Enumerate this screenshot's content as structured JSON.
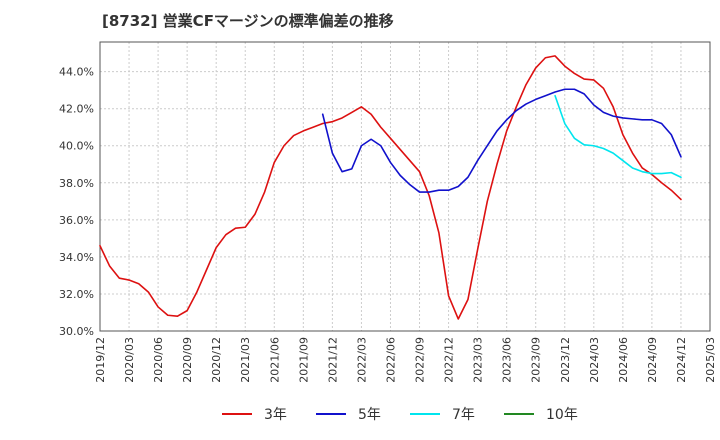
{
  "chart_data": {
    "type": "line",
    "title": "[8732]  営業CFマージンの標準偏差の推移",
    "x_tick_labels": [
      "2019/12",
      "2020/03",
      "2020/06",
      "2020/09",
      "2020/12",
      "2021/03",
      "2021/06",
      "2021/09",
      "2021/12",
      "2022/03",
      "2022/06",
      "2022/09",
      "2022/12",
      "2023/03",
      "2023/06",
      "2023/09",
      "2023/12",
      "2024/03",
      "2024/06",
      "2024/09",
      "2024/12",
      "2025/03"
    ],
    "y_tick_labels": [
      "30.0%",
      "32.0%",
      "34.0%",
      "36.0%",
      "38.0%",
      "40.0%",
      "42.0%",
      "44.0%"
    ],
    "ylim": [
      30,
      45.6
    ],
    "grid": true,
    "legend_position": "bottom",
    "series": [
      {
        "name": "3年",
        "color": "#dd1111",
        "x": [
          "2019/12",
          "2020/01",
          "2020/02",
          "2020/03",
          "2020/04",
          "2020/05",
          "2020/06",
          "2020/07",
          "2020/08",
          "2020/09",
          "2020/10",
          "2020/11",
          "2020/12",
          "2021/01",
          "2021/02",
          "2021/03",
          "2021/04",
          "2021/05",
          "2021/06",
          "2021/07",
          "2021/08",
          "2021/09",
          "2021/10",
          "2021/11",
          "2021/12",
          "2022/01",
          "2022/02",
          "2022/03",
          "2022/04",
          "2022/05",
          "2022/06",
          "2022/07",
          "2022/08",
          "2022/09",
          "2022/10",
          "2022/11",
          "2022/12",
          "2023/01",
          "2023/02",
          "2023/03",
          "2023/04",
          "2023/05",
          "2023/06",
          "2023/07",
          "2023/08",
          "2023/09",
          "2023/10",
          "2023/11",
          "2023/12",
          "2024/01",
          "2024/02",
          "2024/03",
          "2024/04",
          "2024/05",
          "2024/06",
          "2024/07",
          "2024/08",
          "2024/09",
          "2024/10",
          "2024/11",
          "2024/12"
        ],
        "values": [
          34.6,
          33.5,
          32.85,
          32.75,
          32.55,
          32.1,
          31.3,
          30.85,
          30.8,
          31.1,
          32.1,
          33.3,
          34.5,
          35.2,
          35.55,
          35.6,
          36.3,
          37.5,
          39.1,
          40.0,
          40.55,
          40.8,
          41.0,
          41.2,
          41.3,
          41.5,
          41.8,
          42.1,
          41.7,
          41.0,
          40.4,
          39.8,
          39.2,
          38.6,
          37.3,
          35.3,
          31.9,
          30.65,
          31.7,
          34.4,
          37.0,
          39.0,
          40.8,
          42.1,
          43.3,
          44.2,
          44.75,
          44.85,
          44.3,
          43.9,
          43.6,
          43.55,
          43.1,
          42.1,
          40.6,
          39.6,
          38.8,
          38.45,
          38.0,
          37.6,
          37.1
        ]
      },
      {
        "name": "5年",
        "color": "#1111cc",
        "x": [
          "2021/11",
          "2021/12",
          "2022/01",
          "2022/02",
          "2022/03",
          "2022/04",
          "2022/05",
          "2022/06",
          "2022/07",
          "2022/08",
          "2022/09",
          "2022/10",
          "2022/11",
          "2022/12",
          "2023/01",
          "2023/02",
          "2023/03",
          "2023/04",
          "2023/05",
          "2023/06",
          "2023/07",
          "2023/08",
          "2023/09",
          "2023/10",
          "2023/11",
          "2023/12",
          "2024/01",
          "2024/02",
          "2024/03",
          "2024/04",
          "2024/05",
          "2024/06",
          "2024/07",
          "2024/08",
          "2024/09",
          "2024/10",
          "2024/11",
          "2024/12"
        ],
        "values": [
          41.7,
          39.6,
          38.6,
          38.75,
          40.0,
          40.35,
          40.0,
          39.1,
          38.4,
          37.9,
          37.5,
          37.5,
          37.6,
          37.6,
          37.8,
          38.3,
          39.2,
          40.0,
          40.8,
          41.4,
          41.9,
          42.25,
          42.5,
          42.7,
          42.9,
          43.05,
          43.05,
          42.8,
          42.2,
          41.8,
          41.6,
          41.5,
          41.45,
          41.4,
          41.4,
          41.2,
          40.6,
          39.4
        ]
      },
      {
        "name": "7年",
        "color": "#00e5ee",
        "x": [
          "2023/11",
          "2023/12",
          "2024/01",
          "2024/02",
          "2024/03",
          "2024/04",
          "2024/05",
          "2024/06",
          "2024/07",
          "2024/08",
          "2024/09",
          "2024/10",
          "2024/11",
          "2024/12"
        ],
        "values": [
          42.7,
          41.2,
          40.4,
          40.05,
          40.0,
          39.85,
          39.6,
          39.2,
          38.8,
          38.6,
          38.5,
          38.5,
          38.55,
          38.3
        ]
      },
      {
        "name": "10年",
        "color": "#228822",
        "x": [],
        "values": []
      }
    ]
  }
}
